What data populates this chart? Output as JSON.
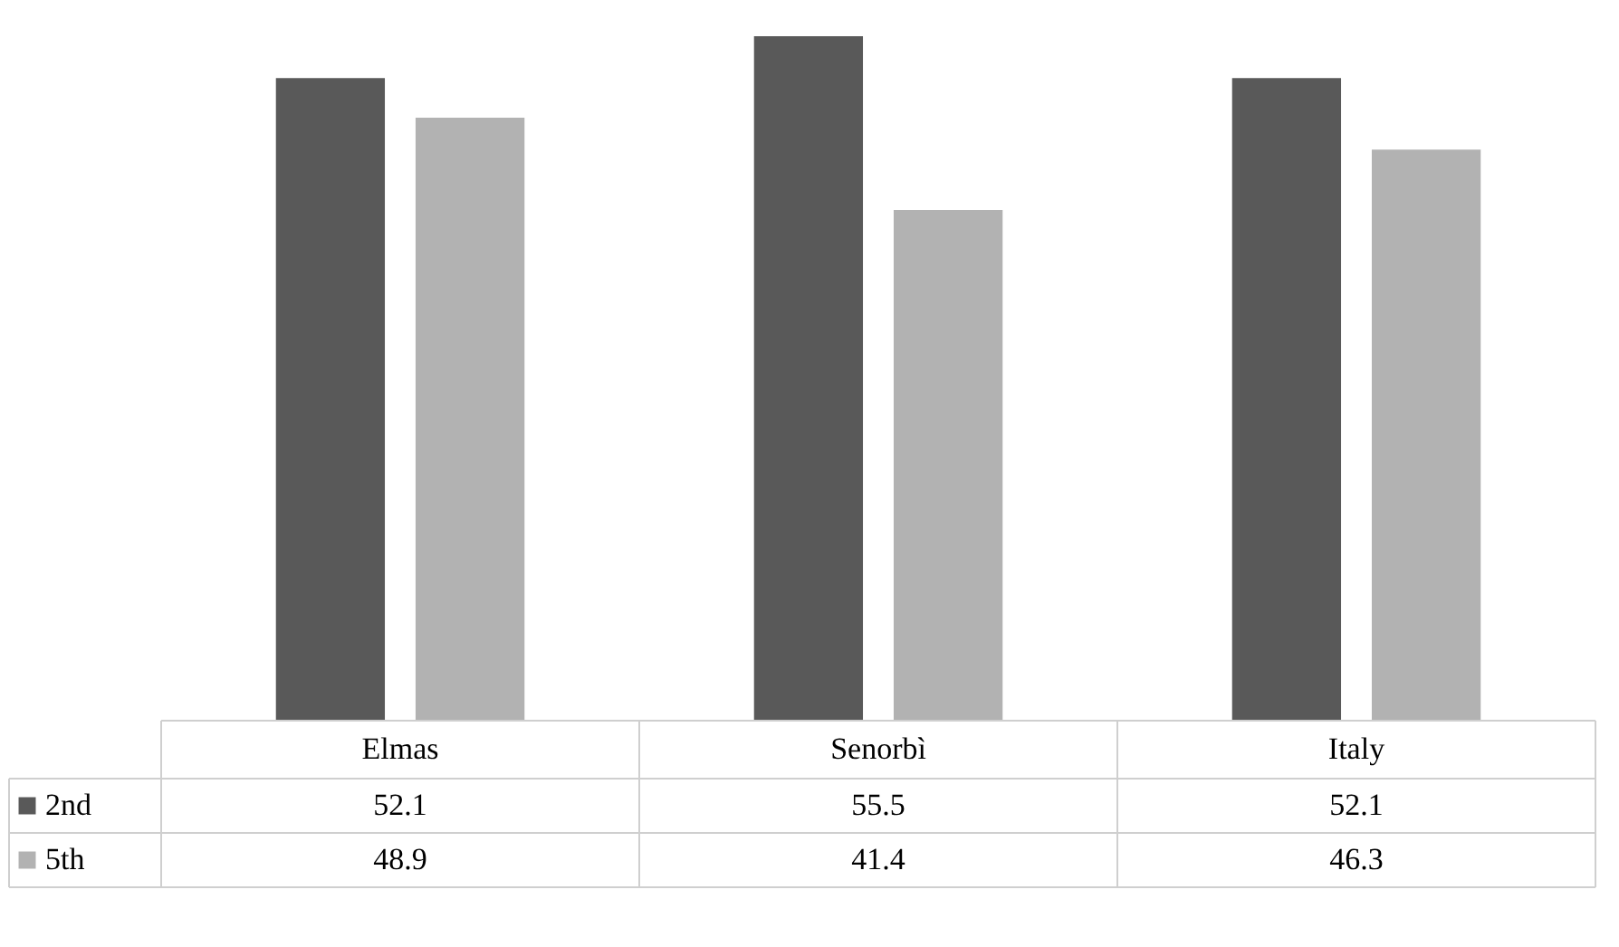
{
  "chart_data": {
    "type": "bar",
    "categories": [
      "Elmas",
      "Senorbì",
      "Italy"
    ],
    "series": [
      {
        "name": "2nd",
        "color": "#595959",
        "values": [
          52.1,
          55.5,
          52.1
        ]
      },
      {
        "name": "5th",
        "color": "#b2b2b2",
        "values": [
          48.9,
          41.4,
          46.3
        ]
      }
    ],
    "data_labels": true,
    "legend": "bottom",
    "grid": false
  }
}
